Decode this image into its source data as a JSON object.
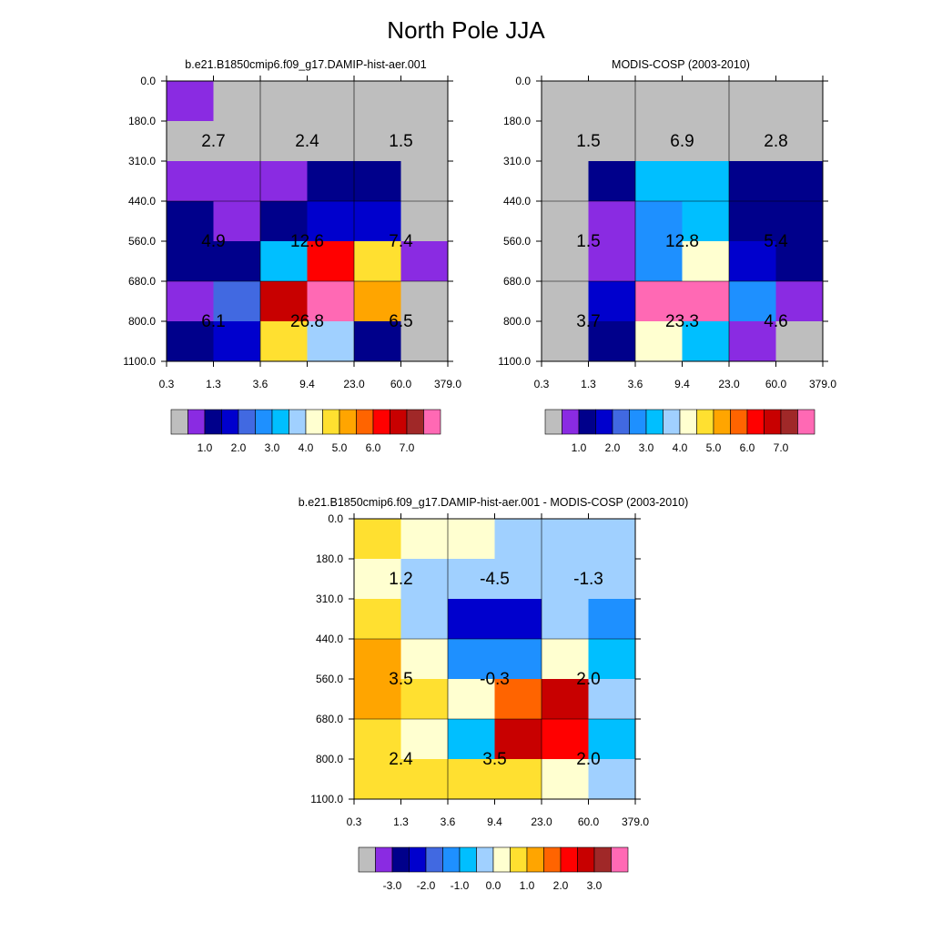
{
  "title": "North Pole JJA",
  "chart_data": [
    {
      "type": "heatmap",
      "id": "model",
      "title": "b.e21.B1850cmip6.f09_g17.DAMIP-hist-aer.001",
      "x_ticks": [
        "0.3",
        "1.3",
        "3.6",
        "9.4",
        "23.0",
        "60.0",
        "379.0"
      ],
      "y_ticks": [
        "0.0",
        "180.0",
        "310.0",
        "440.0",
        "560.0",
        "680.0",
        "800.0",
        "1100.0"
      ],
      "colorbar": {
        "colors": [
          "#bebebe",
          "#8a2be2",
          "#00008b",
          "#0000cd",
          "#4169e1",
          "#1e90ff",
          "#00bfff",
          "#a0d0ff",
          "#ffffd0",
          "#ffe030",
          "#ffa500",
          "#ff6400",
          "#ff0000",
          "#c80000",
          "#a02828",
          "#ff69b4"
        ],
        "labels": [
          "1.0",
          "2.0",
          "3.0",
          "4.0",
          "5.0",
          "6.0",
          "7.0"
        ]
      },
      "cells": [
        [
          "#8a2be2",
          "#bebebe",
          "#bebebe",
          "#bebebe",
          "#bebebe",
          "#bebebe"
        ],
        [
          "#bebebe",
          "#bebebe",
          "#bebebe",
          "#bebebe",
          "#bebebe",
          "#bebebe"
        ],
        [
          "#8a2be2",
          "#8a2be2",
          "#8a2be2",
          "#00008b",
          "#00008b",
          "#bebebe"
        ],
        [
          "#00008b",
          "#8a2be2",
          "#00008b",
          "#0000cd",
          "#0000cd",
          "#bebebe"
        ],
        [
          "#00008b",
          "#00008b",
          "#00bfff",
          "#ff0000",
          "#ffe030",
          "#8a2be2"
        ],
        [
          "#8a2be2",
          "#4169e1",
          "#c80000",
          "#ff69b4",
          "#ffa500",
          "#bebebe"
        ],
        [
          "#00008b",
          "#0000cd",
          "#ffe030",
          "#a0d0ff",
          "#00008b",
          "#bebebe"
        ]
      ],
      "annotations": [
        [
          "2.7",
          "2.4",
          "1.5"
        ],
        [
          "4.9",
          "12.6",
          "7.4"
        ],
        [
          "6.1",
          "26.8",
          "6.5"
        ]
      ]
    },
    {
      "type": "heatmap",
      "id": "obs",
      "title": "MODIS-COSP (2003-2010)",
      "x_ticks": [
        "0.3",
        "1.3",
        "3.6",
        "9.4",
        "23.0",
        "60.0",
        "379.0"
      ],
      "y_ticks": [
        "0.0",
        "180.0",
        "310.0",
        "440.0",
        "560.0",
        "680.0",
        "800.0",
        "1100.0"
      ],
      "colorbar": {
        "colors": [
          "#bebebe",
          "#8a2be2",
          "#00008b",
          "#0000cd",
          "#4169e1",
          "#1e90ff",
          "#00bfff",
          "#a0d0ff",
          "#ffffd0",
          "#ffe030",
          "#ffa500",
          "#ff6400",
          "#ff0000",
          "#c80000",
          "#a02828",
          "#ff69b4"
        ],
        "labels": [
          "1.0",
          "2.0",
          "3.0",
          "4.0",
          "5.0",
          "6.0",
          "7.0"
        ]
      },
      "cells": [
        [
          "#bebebe",
          "#bebebe",
          "#bebebe",
          "#bebebe",
          "#bebebe",
          "#bebebe"
        ],
        [
          "#bebebe",
          "#bebebe",
          "#bebebe",
          "#bebebe",
          "#bebebe",
          "#bebebe"
        ],
        [
          "#bebebe",
          "#00008b",
          "#00bfff",
          "#00bfff",
          "#00008b",
          "#00008b"
        ],
        [
          "#bebebe",
          "#8a2be2",
          "#1e90ff",
          "#00bfff",
          "#00008b",
          "#00008b"
        ],
        [
          "#bebebe",
          "#8a2be2",
          "#1e90ff",
          "#ffffd0",
          "#0000cd",
          "#00008b"
        ],
        [
          "#bebebe",
          "#0000cd",
          "#ff69b4",
          "#ff69b4",
          "#1e90ff",
          "#8a2be2"
        ],
        [
          "#bebebe",
          "#00008b",
          "#ffffd0",
          "#00bfff",
          "#8a2be2",
          "#bebebe"
        ]
      ],
      "annotations": [
        [
          "1.5",
          "6.9",
          "2.8"
        ],
        [
          "1.5",
          "12.8",
          "5.4"
        ],
        [
          "3.7",
          "23.3",
          "4.6"
        ]
      ]
    },
    {
      "type": "heatmap",
      "id": "diff",
      "title": "b.e21.B1850cmip6.f09_g17.DAMIP-hist-aer.001 - MODIS-COSP (2003-2010)",
      "x_ticks": [
        "0.3",
        "1.3",
        "3.6",
        "9.4",
        "23.0",
        "60.0",
        "379.0"
      ],
      "y_ticks": [
        "0.0",
        "180.0",
        "310.0",
        "440.0",
        "560.0",
        "680.0",
        "800.0",
        "1100.0"
      ],
      "colorbar": {
        "colors": [
          "#bebebe",
          "#8a2be2",
          "#00008b",
          "#0000cd",
          "#4169e1",
          "#1e90ff",
          "#00bfff",
          "#a0d0ff",
          "#ffffd0",
          "#ffe030",
          "#ffa500",
          "#ff6400",
          "#ff0000",
          "#c80000",
          "#a02828",
          "#ff69b4"
        ],
        "labels": [
          "-3.0",
          "-2.0",
          "-1.0",
          "0.0",
          "1.0",
          "2.0",
          "3.0"
        ]
      },
      "cells": [
        [
          "#ffe030",
          "#ffffd0",
          "#ffffd0",
          "#a0d0ff",
          "#a0d0ff",
          "#a0d0ff"
        ],
        [
          "#ffffd0",
          "#a0d0ff",
          "#a0d0ff",
          "#a0d0ff",
          "#a0d0ff",
          "#a0d0ff"
        ],
        [
          "#ffe030",
          "#a0d0ff",
          "#0000cd",
          "#0000cd",
          "#a0d0ff",
          "#1e90ff"
        ],
        [
          "#ffa500",
          "#ffffd0",
          "#1e90ff",
          "#1e90ff",
          "#ffffd0",
          "#00bfff"
        ],
        [
          "#ffa500",
          "#ffe030",
          "#ffffd0",
          "#ff6400",
          "#c80000",
          "#a0d0ff"
        ],
        [
          "#ffe030",
          "#ffffd0",
          "#00bfff",
          "#c80000",
          "#ff0000",
          "#00bfff"
        ],
        [
          "#ffe030",
          "#ffe030",
          "#ffe030",
          "#ffe030",
          "#ffffd0",
          "#a0d0ff"
        ]
      ],
      "annotations": [
        [
          "1.2",
          "-4.5",
          "-1.3"
        ],
        [
          "3.5",
          "-0.3",
          "2.0"
        ],
        [
          "2.4",
          "3.5",
          "2.0"
        ]
      ]
    }
  ]
}
